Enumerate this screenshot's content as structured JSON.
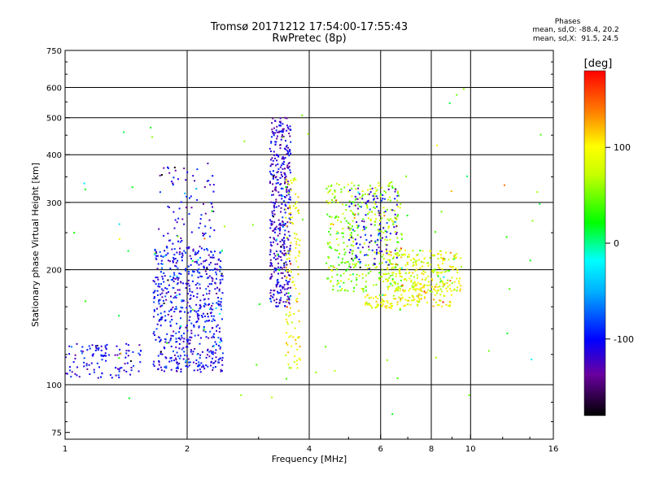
{
  "chart_data": {
    "type": "scatter",
    "title": "Tromsø 20171212 17:54:00-17:55:43",
    "subtitle": "RwPretec (8p)",
    "xlabel": "Frequency [MHz]",
    "ylabel": "Stationary phase Virtual Height [km]",
    "xscale": "log",
    "yscale": "log",
    "xlim": [
      1,
      16
    ],
    "ylim": [
      72,
      750
    ],
    "grid": true,
    "x_ticks": [
      {
        "value": 1,
        "label": "1"
      },
      {
        "value": 2,
        "label": "2"
      },
      {
        "value": 4,
        "label": "4"
      },
      {
        "value": 6,
        "label": "6"
      },
      {
        "value": 8,
        "label": "8"
      },
      {
        "value": 10,
        "label": "10"
      },
      {
        "value": 16,
        "label": "16"
      }
    ],
    "x_grid": [
      2,
      4,
      6,
      8,
      10
    ],
    "y_ticks": [
      {
        "value": 75,
        "label": "75"
      },
      {
        "value": 100,
        "label": "100"
      },
      {
        "value": 200,
        "label": "200"
      },
      {
        "value": 300,
        "label": "300"
      },
      {
        "value": 400,
        "label": "400"
      },
      {
        "value": 500,
        "label": "500"
      },
      {
        "value": 600,
        "label": "600"
      },
      {
        "value": 750,
        "label": "750"
      }
    ],
    "y_grid": [
      100,
      200,
      300,
      400,
      500,
      600
    ],
    "colorbar": {
      "label": "[deg]",
      "ticks": [
        {
          "value": 100,
          "label": "100"
        },
        {
          "value": 0,
          "label": "0"
        },
        {
          "value": -100,
          "label": "-100"
        }
      ],
      "range": [
        -180,
        180
      ]
    },
    "phase_header": "Phases",
    "phase_o": "mean, sd,O: -88.4, 20.2",
    "phase_x": "mean, sd,X:  91.5, 24.5",
    "clusters": [
      {
        "fmin": 1.0,
        "fmax": 1.55,
        "hmin": 104,
        "hmax": 128,
        "phase": -110,
        "n": 110
      },
      {
        "fmin": 1.65,
        "fmax": 2.45,
        "hmin": 108,
        "hmax": 230,
        "phase": -105,
        "n": 620
      },
      {
        "fmin": 1.7,
        "fmax": 2.35,
        "hmin": 230,
        "hmax": 380,
        "phase": -110,
        "n": 80
      },
      {
        "fmin": 3.2,
        "fmax": 3.6,
        "hmin": 160,
        "hmax": 500,
        "phase": -115,
        "n": 420
      },
      {
        "fmin": 3.5,
        "fmax": 3.8,
        "hmin": 110,
        "hmax": 350,
        "phase": 95,
        "n": 120
      },
      {
        "fmin": 4.4,
        "fmax": 6.8,
        "hmin": 175,
        "hmax": 340,
        "phase": 60,
        "n": 380
      },
      {
        "fmin": 5.0,
        "fmax": 6.6,
        "hmin": 200,
        "hmax": 330,
        "phase": -110,
        "n": 120
      },
      {
        "fmin": 5.5,
        "fmax": 7.5,
        "hmin": 158,
        "hmax": 172,
        "phase": 90,
        "n": 80
      },
      {
        "fmin": 6.2,
        "fmax": 9.5,
        "hmin": 175,
        "hmax": 225,
        "phase": 85,
        "n": 240
      },
      {
        "fmin": 7.2,
        "fmax": 9.0,
        "hmin": 160,
        "hmax": 185,
        "phase": 100,
        "n": 60
      },
      {
        "fmin": 1.05,
        "fmax": 15.5,
        "hmin": 80,
        "hmax": 600,
        "phase": 40,
        "n": 70
      }
    ]
  }
}
